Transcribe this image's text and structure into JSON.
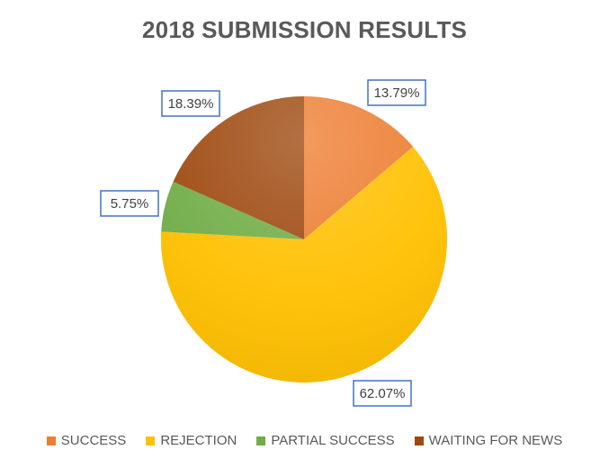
{
  "chart_data": {
    "type": "pie",
    "title": "2018 SUBMISSION RESULTS",
    "categories": [
      "SUCCESS",
      "REJECTION",
      "PARTIAL SUCCESS",
      "WAITING FOR NEWS"
    ],
    "values": [
      13.79,
      62.07,
      5.75,
      18.39
    ],
    "labels": [
      "13.79%",
      "62.07%",
      "5.75%",
      "18.39%"
    ],
    "colors": [
      "#ED7D31",
      "#FFC000",
      "#70AD47",
      "#9E480E"
    ],
    "legend_position": "bottom",
    "start_angle": "12 o'clock, clockwise"
  }
}
